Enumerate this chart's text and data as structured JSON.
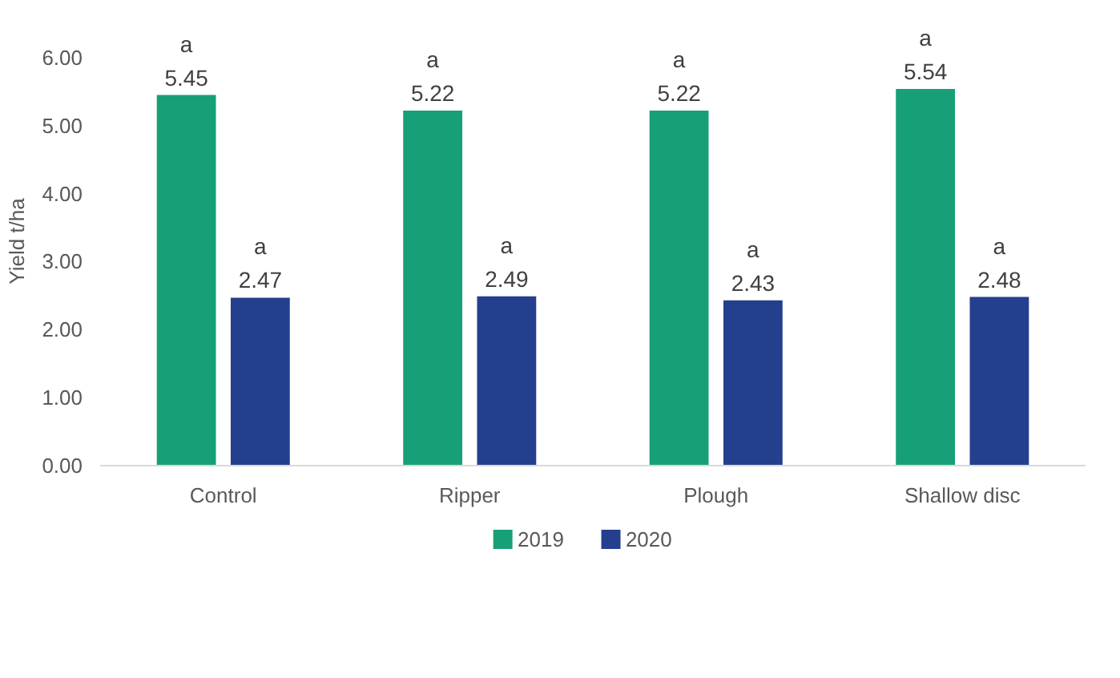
{
  "chart_data": {
    "type": "bar",
    "ylabel": "Yield t/ha",
    "categories": [
      "Control",
      "Ripper",
      "Plough",
      "Shallow disc"
    ],
    "series": [
      {
        "name": "2019",
        "color": "#17a077",
        "values": [
          5.45,
          5.22,
          5.22,
          5.54
        ],
        "value_labels": [
          "5.45",
          "5.22",
          "5.22",
          "5.54"
        ]
      },
      {
        "name": "2020",
        "color": "#243f8e",
        "values": [
          2.47,
          2.49,
          2.43,
          2.48
        ],
        "value_labels": [
          "2.47",
          "2.49",
          "2.43",
          "2.48"
        ]
      }
    ],
    "ylim": [
      0,
      6
    ],
    "yticks": [
      {
        "value": 0,
        "label": "0.00"
      },
      {
        "value": 1,
        "label": "1.00"
      },
      {
        "value": 2,
        "label": "2.00"
      },
      {
        "value": 3,
        "label": "3.00"
      },
      {
        "value": 4,
        "label": "4.00"
      },
      {
        "value": 5,
        "label": "5.00"
      },
      {
        "value": 6,
        "label": "6.00"
      }
    ],
    "annotations": [
      "a",
      "a",
      "a",
      "a",
      "a",
      "a",
      "a",
      "a"
    ],
    "grid": false,
    "legend": "bottom"
  }
}
